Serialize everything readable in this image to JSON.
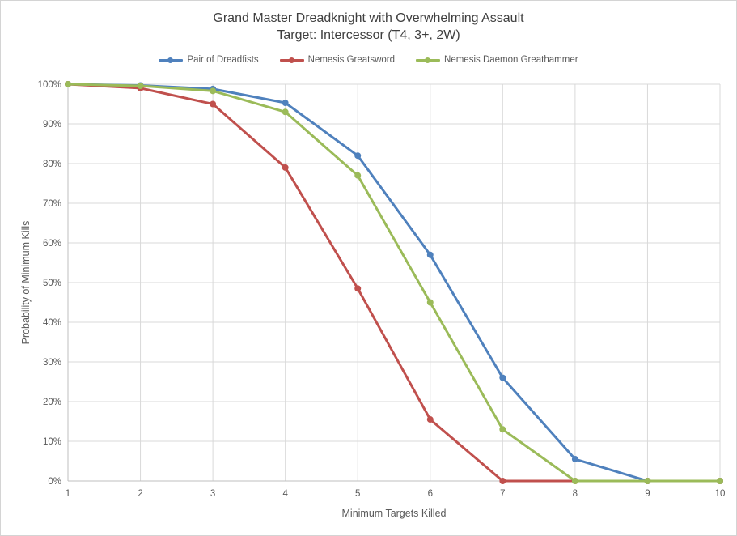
{
  "colors": {
    "background": "#ffffff",
    "frame_border": "#d4d4d4",
    "gridline": "#d9d9d9",
    "axis_line": "#bfbfbf",
    "axis_text": "#595959",
    "title_text": "#3f3f3f"
  },
  "chart_data": {
    "type": "line",
    "title": "Grand Master Dreadknight with Overwhelming Assault",
    "subtitle": "Target: Intercessor (T4, 3+, 2W)",
    "xlabel": "Minimum Targets Killed",
    "ylabel": "Probability of Minimum Kills",
    "x": [
      1,
      2,
      3,
      4,
      5,
      6,
      7,
      8,
      9,
      10
    ],
    "ylim": [
      0,
      100
    ],
    "y_ticks": [
      "0%",
      "10%",
      "20%",
      "30%",
      "40%",
      "50%",
      "60%",
      "70%",
      "80%",
      "90%",
      "100%"
    ],
    "grid": true,
    "legend_position": "top",
    "marker": "circle",
    "series": [
      {
        "name": "Pair of Dreadfists",
        "color": "#4f81bd",
        "values": [
          100,
          99.7,
          98.8,
          95.3,
          82,
          57,
          26,
          5.5,
          0,
          0
        ]
      },
      {
        "name": "Nemesis Greatsword",
        "color": "#c0504d",
        "values": [
          100,
          99,
          95,
          79,
          48.5,
          15.5,
          0,
          0,
          0,
          0
        ]
      },
      {
        "name": "Nemesis Daemon Greathammer",
        "color": "#9bbb59",
        "values": [
          100,
          99.6,
          98.3,
          93,
          77,
          45,
          13,
          0,
          0,
          0
        ]
      }
    ]
  }
}
